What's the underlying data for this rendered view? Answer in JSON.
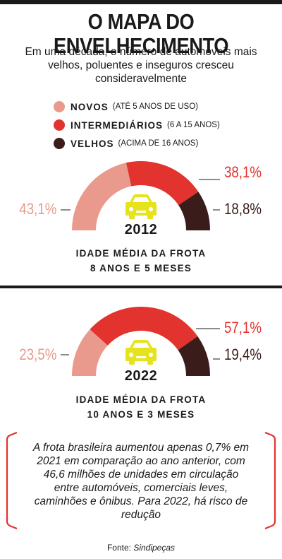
{
  "title": "O MAPA DO ENVELHECIMENTO",
  "subtitle": "Em uma década, o número de automóveis mais velhos, poluentes e inseguros cresceu consideravelmente",
  "legend": [
    {
      "name": "NOVOS",
      "note": "(ATÉ 5 ANOS DE USO)",
      "color": "#ea9a8c"
    },
    {
      "name": "INTERMEDIÁRIOS",
      "note": "(6 A 15 ANOS)",
      "color": "#e2332f"
    },
    {
      "name": "VELHOS",
      "note": "(ACIMA DE 16 ANOS)",
      "color": "#3a1c1b"
    }
  ],
  "chart_data": [
    {
      "type": "pie",
      "title": "2012",
      "categories": [
        "NOVOS",
        "INTERMEDIÁRIOS",
        "VELHOS"
      ],
      "values": [
        43.1,
        38.1,
        18.8
      ],
      "labels": [
        "43,1%",
        "38,1%",
        "18,8%"
      ],
      "caption_line1": "IDADE MÉDIA DA FROTA",
      "caption_line2": "8 ANOS E 5 MESES"
    },
    {
      "type": "pie",
      "title": "2022",
      "categories": [
        "NOVOS",
        "INTERMEDIÁRIOS",
        "VELHOS"
      ],
      "values": [
        23.5,
        57.1,
        19.4
      ],
      "labels": [
        "23,5%",
        "57,1%",
        "19,4%"
      ],
      "caption_line1": "IDADE MÉDIA DA FROTA",
      "caption_line2": "10 ANOS E 3 MESES"
    }
  ],
  "note": "A frota brasileira aumentou apenas 0,7% em 2021 em comparação ao ano anterior, com 46,6 milhões de unidades em circulação entre automóveis, comerciais leves, caminhões e ônibus. Para 2022, há risco de redução",
  "source_label": "Fonte:",
  "source_name": "Sindipeças",
  "colors": {
    "car": "#e6e21c",
    "bracket": "#e2332f",
    "text": "#1a1a1a"
  },
  "icons": {
    "vehicle": "car-icon"
  }
}
